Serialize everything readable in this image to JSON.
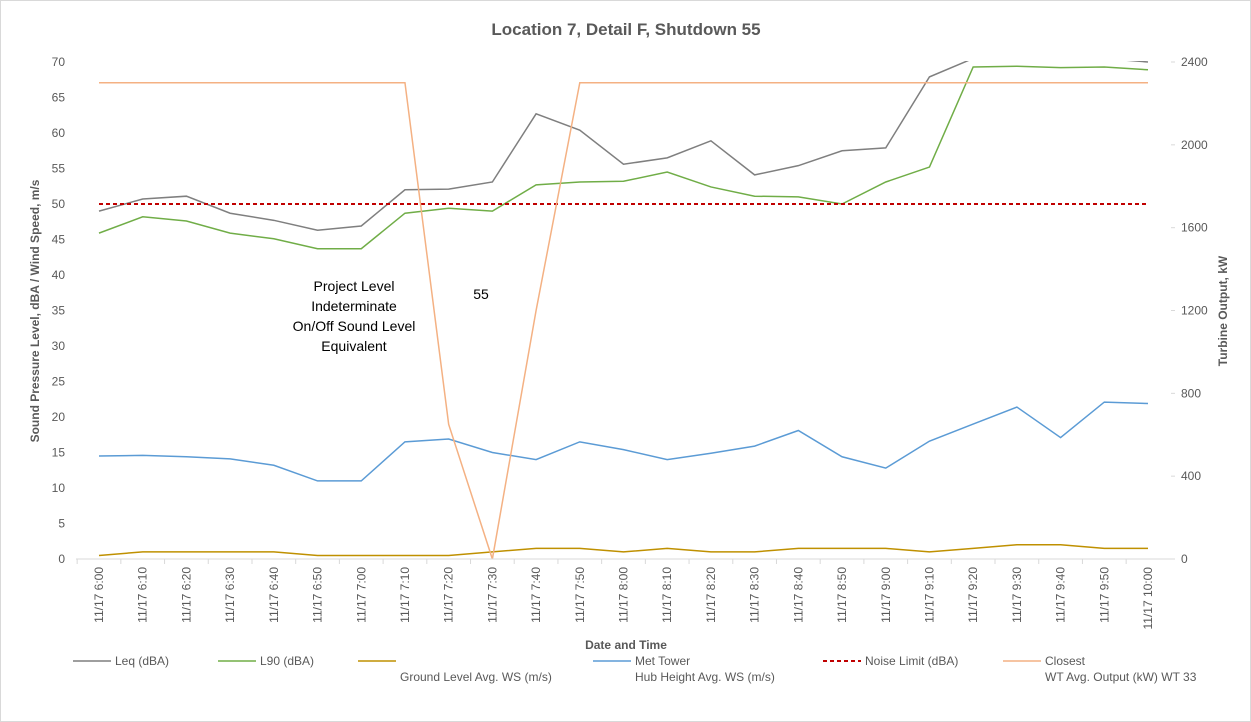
{
  "chart_data": {
    "type": "line",
    "title": "Location 7, Detail F, Shutdown 55",
    "x_label": "Date and Time",
    "y_label": "Sound Pressure Level, dBA / Wind Speed, m/s",
    "y2_label": "Turbine Output, kW",
    "annotations": [
      "Project Level\nIndeterminate\nOn/Off Sound Level\nEquivalent",
      "55"
    ],
    "categories": [
      "11/17 6:00",
      "11/17 6:10",
      "11/17 6:20",
      "11/17 6:30",
      "11/17 6:40",
      "11/17 6:50",
      "11/17 7:00",
      "11/17 7:10",
      "11/17 7:20",
      "11/17 7:30",
      "11/17 7:40",
      "11/17 7:50",
      "11/17 8:00",
      "11/17 8:10",
      "11/17 8:20",
      "11/17 8:30",
      "11/17 8:40",
      "11/17 8:50",
      "11/17 9:00",
      "11/17 9:10",
      "11/17 9:20",
      "11/17 9:30",
      "11/17 9:40",
      "11/17 9:50",
      "11/17 10:00"
    ],
    "ylim": [
      0,
      70
    ],
    "yticks": [
      0,
      5,
      10,
      15,
      20,
      25,
      30,
      35,
      40,
      45,
      50,
      55,
      60,
      65,
      70
    ],
    "y2lim": [
      0,
      2400
    ],
    "y2ticks": [
      0,
      400,
      800,
      1200,
      1600,
      2000,
      2400
    ],
    "series": [
      {
        "name": "Leq (dBA)",
        "color": "#7f7f7f",
        "values": [
          49.0,
          50.7,
          51.1,
          48.7,
          47.7,
          46.3,
          46.9,
          52.0,
          52.1,
          53.1,
          62.7,
          60.4,
          55.6,
          56.5,
          58.9,
          54.1,
          55.4,
          57.5,
          57.9,
          67.9,
          70.5,
          71,
          71,
          70.5,
          70.0
        ]
      },
      {
        "name": "L90 (dBA)",
        "color": "#70ad47",
        "values": [
          45.9,
          48.2,
          47.6,
          45.9,
          45.1,
          43.7,
          43.7,
          48.7,
          49.4,
          49.0,
          52.7,
          53.1,
          53.2,
          54.5,
          52.4,
          51.1,
          51.0,
          50.0,
          53.1,
          55.2,
          69.3,
          69.4,
          69.2,
          69.3,
          68.9
        ]
      },
      {
        "name": "Ground Level Avg. WS (m/s)",
        "color": "#bf9000",
        "values": [
          0.5,
          1,
          1,
          1,
          1,
          0.5,
          0.5,
          0.5,
          0.5,
          1,
          1.5,
          1.5,
          1,
          1.5,
          1,
          1,
          1.5,
          1.5,
          1.5,
          1,
          1.5,
          2,
          2,
          1.5,
          1.5
        ]
      },
      {
        "name": "Met Tower\nHub Height Avg. WS (m/s)",
        "color": "#5b9bd5",
        "values": [
          14.5,
          14.6,
          14.4,
          14.1,
          13.2,
          11.0,
          11.0,
          16.5,
          16.9,
          15.0,
          14.0,
          16.5,
          15.4,
          14.0,
          14.9,
          15.9,
          18.1,
          14.4,
          12.8,
          16.6,
          19.0,
          21.4,
          17.1,
          22.1,
          21.9
        ]
      },
      {
        "name": "Noise Limit (dBA)",
        "color": "#c00000",
        "dashed": true,
        "values": [
          50,
          50,
          50,
          50,
          50,
          50,
          50,
          50,
          50,
          50,
          50,
          50,
          50,
          50,
          50,
          50,
          50,
          50,
          50,
          50,
          50,
          50,
          50,
          50,
          50
        ]
      },
      {
        "name": "Closest\nWT Avg. Output (kW) WT 33",
        "color": "#f4b183",
        "axis": "y2",
        "values": [
          2300,
          2300,
          2300,
          2300,
          2300,
          2300,
          2300,
          2300,
          650,
          0,
          1200,
          2300,
          2300,
          2300,
          2300,
          2300,
          2300,
          2300,
          2300,
          2300,
          2300,
          2300,
          2300,
          2300,
          2300
        ]
      }
    ]
  }
}
